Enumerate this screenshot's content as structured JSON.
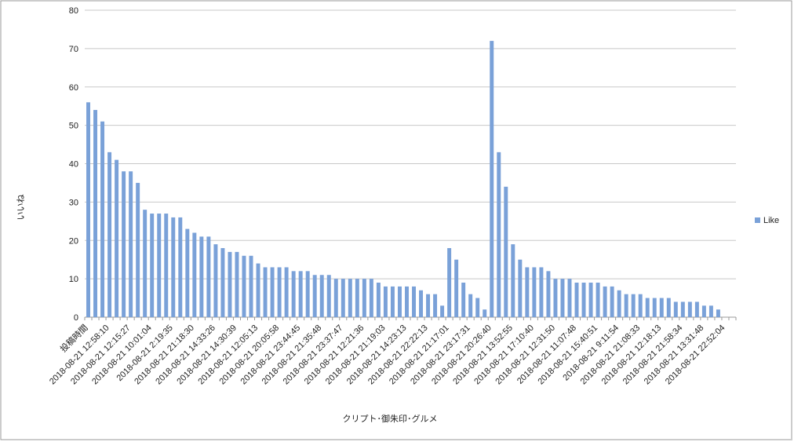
{
  "chart_data": {
    "type": "bar",
    "x_label": "クリプト･御朱印･グルメ",
    "y_label": "いいね",
    "categories": [
      "投稿時間",
      null,
      null,
      "2018-08-21 12:58:10",
      null,
      null,
      "2018-08-21 12:15:27",
      null,
      null,
      "2018-08-21 10:01:04",
      null,
      null,
      "2018-08-21 2:19:35",
      null,
      null,
      "2018-08-21 21:18:30",
      null,
      null,
      "2018-08-21 14:33:26",
      null,
      null,
      "2018-08-21 14:30:39",
      null,
      null,
      "2018-08-21 12:05:13",
      null,
      null,
      "2018-08-21 20:05:58",
      null,
      null,
      "2018-08-21 23:44:45",
      null,
      null,
      "2018-08-21 21:35:48",
      null,
      null,
      "2018-08-21 23:37:47",
      null,
      null,
      "2018-08-21 12:21:36",
      null,
      null,
      "2018-08-21 21:19:03",
      null,
      null,
      "2018-08-21 14:23:13",
      null,
      null,
      "2018-08-21 22:22:13",
      null,
      null,
      "2018-08-21 21:17:01",
      null,
      null,
      "2018-08-21 23:17:31",
      null,
      null,
      "2018-08-21 20:26:40",
      null,
      null,
      "2018-08-21 13:52:55",
      null,
      null,
      "2018-08-21 17:10:40",
      null,
      null,
      "2018-08-21 12:31:50",
      null,
      null,
      "2018-08-21 11:07:48",
      null,
      null,
      "2018-08-21 15:40:51",
      null,
      null,
      "2018-08-21 9:11:54",
      null,
      null,
      "2018-08-21 21:08:33",
      null,
      null,
      "2018-08-21 12:18:13",
      null,
      null,
      "2018-08-21 21:58:34",
      null,
      null,
      "2018-08-21 13:31:48",
      null,
      null,
      "2018-08-21 22:52:04",
      null
    ],
    "series": [
      {
        "name": "Like",
        "color": "#7aa1d8",
        "values": [
          56,
          54,
          51,
          43,
          41,
          38,
          38,
          35,
          28,
          27,
          27,
          27,
          26,
          26,
          23,
          22,
          21,
          21,
          19,
          18,
          17,
          17,
          16,
          16,
          14,
          13,
          13,
          13,
          13,
          12,
          12,
          12,
          11,
          11,
          11,
          10,
          10,
          10,
          10,
          10,
          10,
          9,
          8,
          8,
          8,
          8,
          8,
          7,
          6,
          6,
          3,
          18,
          15,
          9,
          6,
          5,
          2,
          72,
          43,
          34,
          19,
          15,
          13,
          13,
          13,
          12,
          10,
          10,
          10,
          9,
          9,
          9,
          9,
          8,
          8,
          7,
          6,
          6,
          6,
          5,
          5,
          5,
          5,
          4,
          4,
          4,
          4,
          3,
          3,
          2,
          null,
          null
        ]
      }
    ],
    "ylim": [
      0,
      80
    ],
    "yticks": [
      0,
      10,
      20,
      30,
      40,
      50,
      60,
      70,
      80
    ],
    "grid": true,
    "legend": "right"
  }
}
